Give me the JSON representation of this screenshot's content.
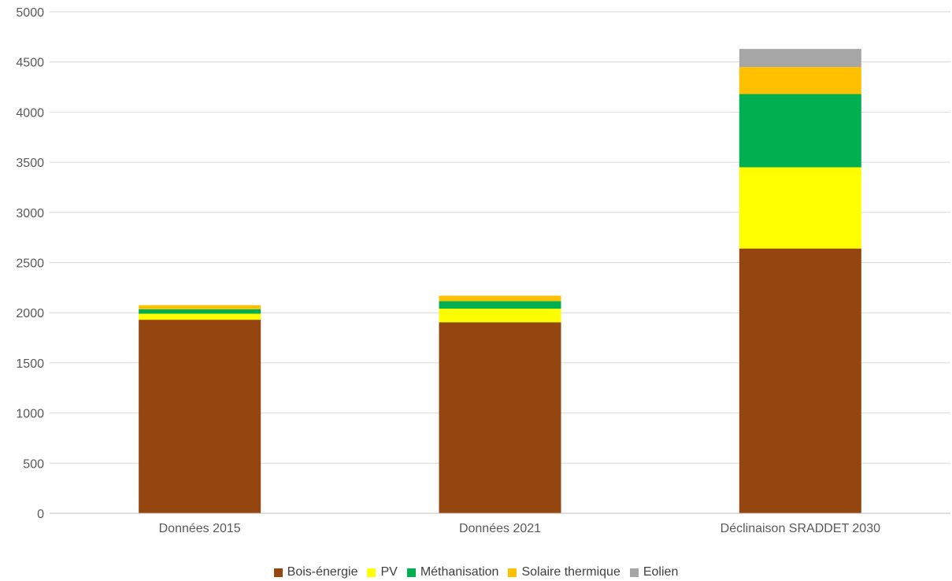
{
  "chart_data": {
    "type": "bar",
    "stacked": true,
    "title": "",
    "xlabel": "",
    "ylabel": "",
    "categories": [
      "Données 2015",
      "Données 2021",
      "Déclinaison SRADDET 2030"
    ],
    "ylim": [
      0,
      5000
    ],
    "yticks": [
      0,
      500,
      1000,
      1500,
      2000,
      2500,
      3000,
      3500,
      4000,
      4500,
      5000
    ],
    "grid": true,
    "legend_position": "bottom",
    "series": [
      {
        "name": "Bois-énergie",
        "color": "#954510",
        "values": [
          1930,
          1905,
          2640
        ]
      },
      {
        "name": "PV",
        "color": "#ffff00",
        "values": [
          60,
          135,
          810
        ]
      },
      {
        "name": "Méthanisation",
        "color": "#00b050",
        "values": [
          45,
          75,
          730
        ]
      },
      {
        "name": "Solaire thermique",
        "color": "#ffc000",
        "values": [
          40,
          55,
          270
        ]
      },
      {
        "name": "Eolien",
        "color": "#a6a6a6",
        "values": [
          0,
          0,
          180
        ]
      }
    ]
  }
}
